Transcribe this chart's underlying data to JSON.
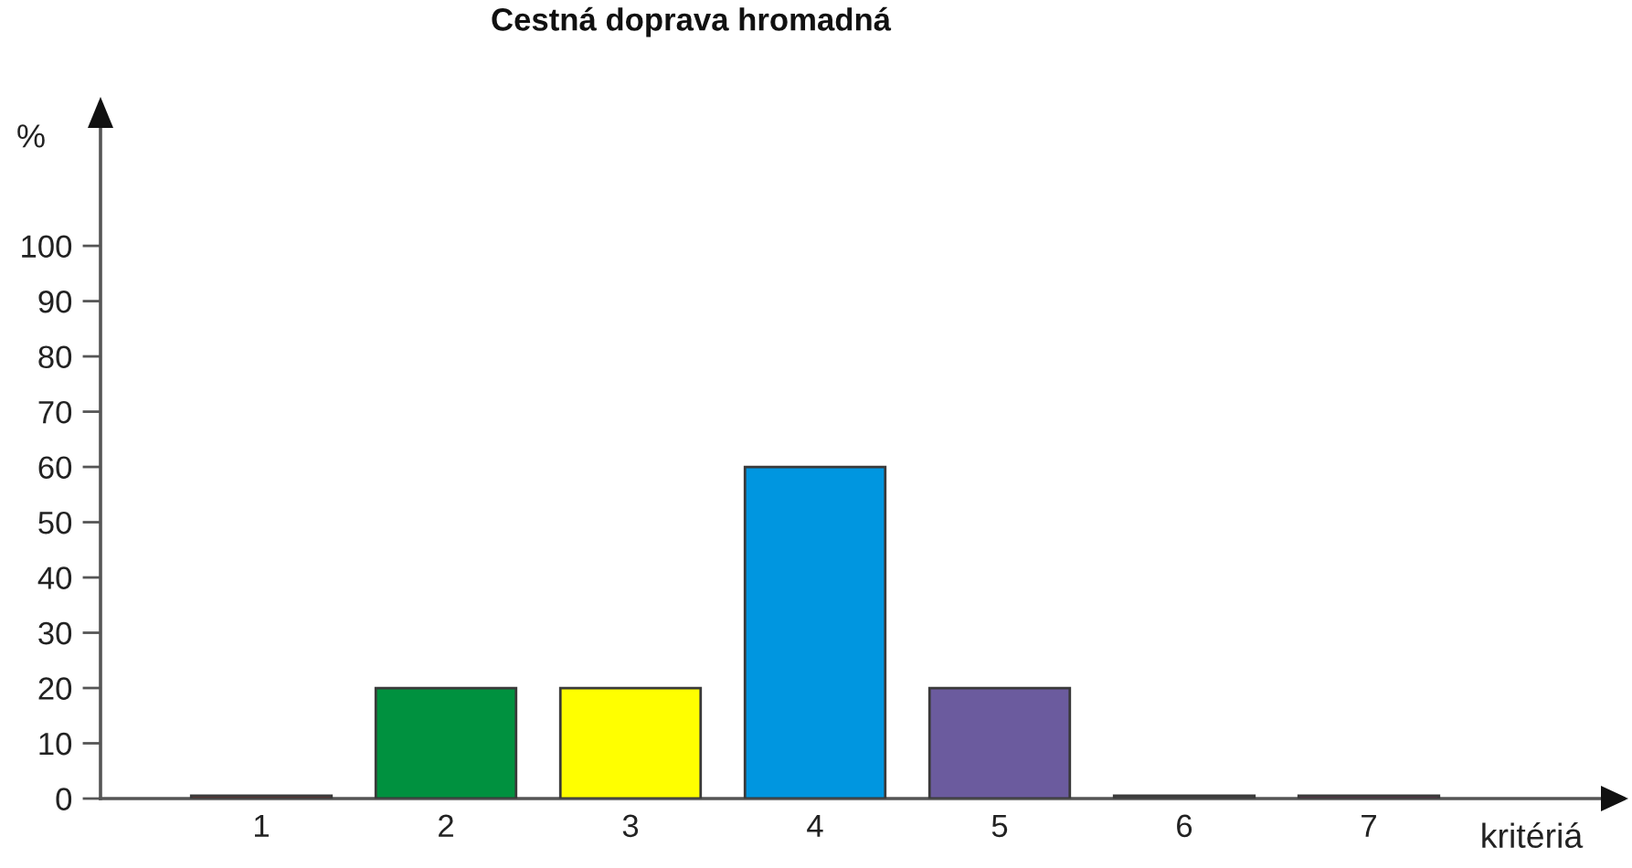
{
  "chart_data": {
    "type": "bar",
    "title": "Cestná doprava hromadná",
    "xlabel": "kritériá",
    "ylabel": "%",
    "categories": [
      "1",
      "2",
      "3",
      "4",
      "5",
      "6",
      "7"
    ],
    "values": [
      0.5,
      20,
      20,
      60,
      20,
      0.5,
      0.5
    ],
    "colors": [
      "#b8312f",
      "#00913f",
      "#ffff00",
      "#0096e0",
      "#6b5b9e",
      "#606060",
      "#a0306e"
    ],
    "ylim": [
      0,
      122
    ],
    "yticks": [
      0,
      10,
      20,
      30,
      40,
      50,
      60,
      70,
      80,
      90,
      100
    ]
  }
}
